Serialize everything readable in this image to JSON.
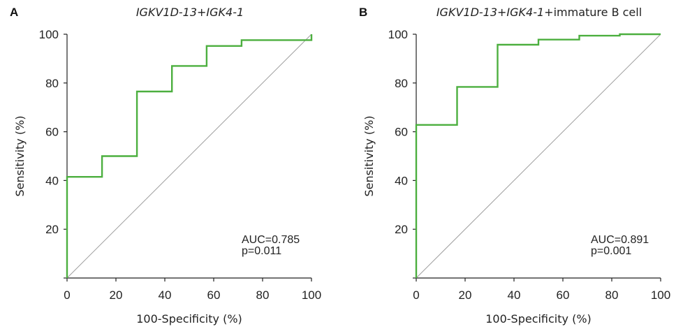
{
  "chart_data": [
    {
      "type": "line",
      "panel": "A",
      "title_parts": [
        {
          "text": "IGKV1D-13",
          "italic": true
        },
        {
          "text": "+",
          "italic": false
        },
        {
          "text": "IGK4-1",
          "italic": true
        }
      ],
      "xlabel": "100-Specificity (%)",
      "ylabel": "Sensitivity (%)",
      "xlim": [
        0,
        100
      ],
      "ylim": [
        0,
        100
      ],
      "x_ticks": [
        "0",
        "20",
        "40",
        "60",
        "80",
        "100"
      ],
      "y_ticks": [
        "20",
        "40",
        "60",
        "80",
        "100"
      ],
      "series": [
        {
          "color": "#4caf3f",
          "x": [
            0,
            0,
            14.3,
            14.3,
            28.6,
            28.6,
            42.9,
            42.9,
            57.1,
            57.1,
            71.4,
            71.4,
            100,
            100
          ],
          "y": [
            0,
            41.5,
            41.5,
            50,
            50,
            76.5,
            76.5,
            87,
            87,
            95.2,
            95.2,
            97.6,
            97.6,
            100
          ]
        }
      ],
      "reference_line": {
        "color": "#9e9e9e",
        "from": [
          0,
          0
        ],
        "to": [
          100,
          100
        ]
      },
      "annotation": [
        "AUC=0.785",
        "p=0.011"
      ]
    },
    {
      "type": "line",
      "panel": "B",
      "title_parts": [
        {
          "text": "IGKV1D-13",
          "italic": true
        },
        {
          "text": "+",
          "italic": false
        },
        {
          "text": "IGK4-1",
          "italic": true
        },
        {
          "text": "+immature B cell",
          "italic": false
        }
      ],
      "xlabel": "100-Specificity (%)",
      "ylabel": "Sensitivity (%)",
      "xlim": [
        0,
        100
      ],
      "ylim": [
        0,
        100
      ],
      "x_ticks": [
        "0",
        "20",
        "40",
        "60",
        "80",
        "100"
      ],
      "y_ticks": [
        "20",
        "40",
        "60",
        "80",
        "100"
      ],
      "series": [
        {
          "color": "#4caf3f",
          "x": [
            0,
            0,
            16.7,
            16.7,
            33.3,
            33.3,
            50,
            50,
            66.7,
            66.7,
            83.3,
            83.3,
            100
          ],
          "y": [
            0,
            62.8,
            62.8,
            78.4,
            78.4,
            95.7,
            95.7,
            97.8,
            97.8,
            99.4,
            99.4,
            100,
            100
          ]
        }
      ],
      "reference_line": {
        "color": "#9e9e9e",
        "from": [
          0,
          0
        ],
        "to": [
          100,
          100
        ]
      },
      "annotation": [
        "AUC=0.891",
        "p=0.001"
      ]
    }
  ]
}
